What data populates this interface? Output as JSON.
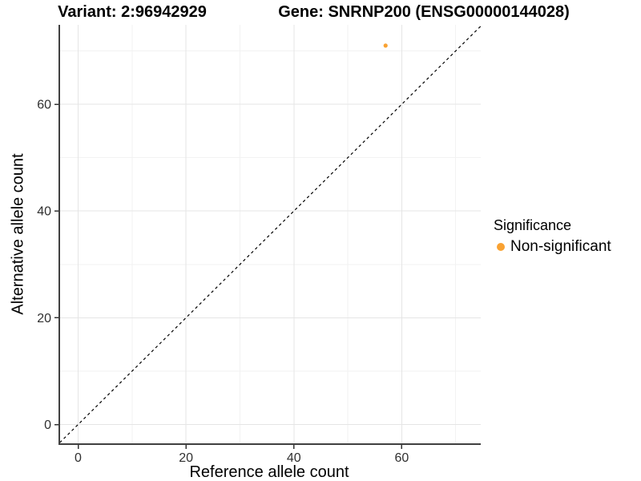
{
  "figure": {
    "title_variant": "Variant: 2:96942929",
    "title_gene": "Gene: SNRNP200 (ENSG00000144028)"
  },
  "chart_data": {
    "type": "scatter",
    "titles": [
      "Variant: 2:96942929",
      "Gene: SNRNP200 (ENSG00000144028)"
    ],
    "xlabel": "Reference allele count",
    "ylabel": "Alternative allele count",
    "xlim": [
      -3.4,
      74.7
    ],
    "ylim": [
      -3.5,
      74.9
    ],
    "x_ticks": [
      0,
      20,
      40,
      60
    ],
    "y_ticks": [
      0,
      20,
      40,
      60
    ],
    "x_minor_gridlines": [
      10,
      30,
      50,
      70
    ],
    "y_minor_gridlines": [
      10,
      30,
      50,
      70
    ],
    "grid": "major and minor gridlines on white panel",
    "identity_line": {
      "style": "dashed",
      "equation": "y = x",
      "from": [
        -3.4,
        -3.4
      ],
      "to": [
        74.8,
        74.8
      ],
      "color": "#000000"
    },
    "series": [
      {
        "name": "Non-significant",
        "color": "#F9A232",
        "points": [
          {
            "x": 57,
            "y": 71
          }
        ]
      }
    ],
    "legend": {
      "title": "Significance",
      "position": "right",
      "entries": [
        {
          "label": "Non-significant",
          "color": "#F9A232"
        }
      ]
    },
    "colors": {
      "point": "#F9A232",
      "axis_line": "#404040",
      "tick": "#333333",
      "tick_text": "#303030",
      "grid_major": "#e5e5e5",
      "grid_minor": "#f2f2f2",
      "background": "#ffffff",
      "identity_line": "#000000"
    }
  }
}
